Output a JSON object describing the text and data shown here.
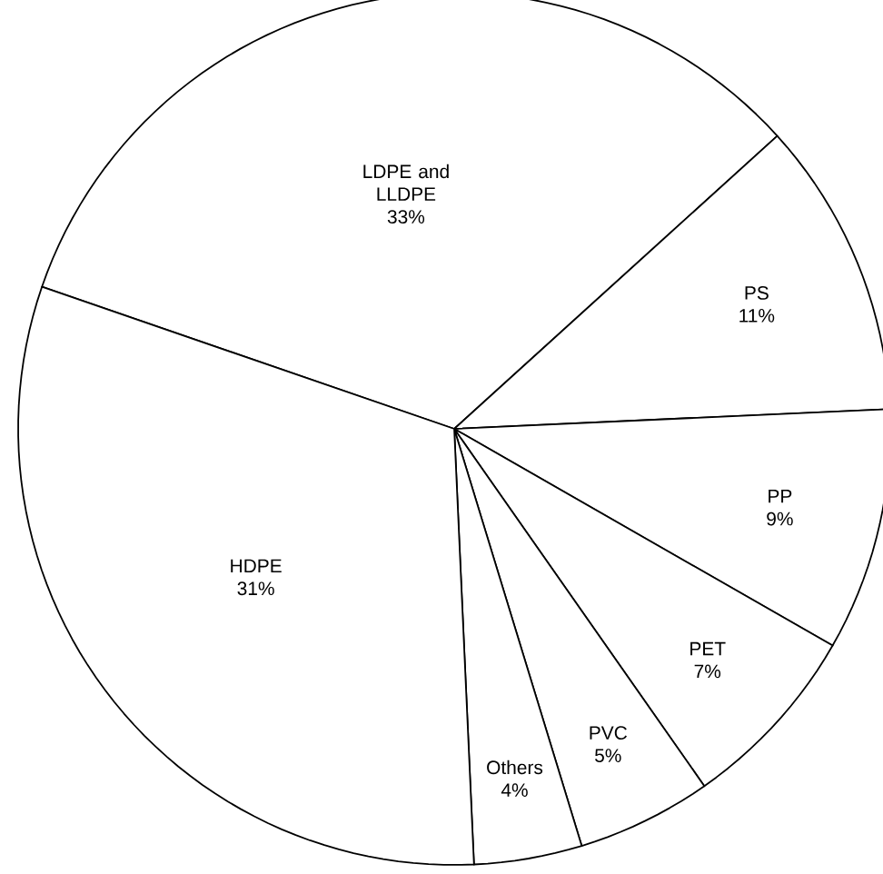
{
  "chart_data": {
    "type": "pie",
    "categories": [
      "LDPE and LLDPE",
      "PS",
      "PP",
      "PET",
      "PVC",
      "Others",
      "HDPE"
    ],
    "values": [
      33,
      11,
      9,
      7,
      5,
      4,
      31
    ],
    "value_labels": [
      "33%",
      "11%",
      "9%",
      "7%",
      "5%",
      "4%",
      "31%"
    ],
    "colors": [
      "#ffffff",
      "#ffffff",
      "#ffffff",
      "#ffffff",
      "#ffffff",
      "#ffffff",
      "#ffffff"
    ]
  }
}
